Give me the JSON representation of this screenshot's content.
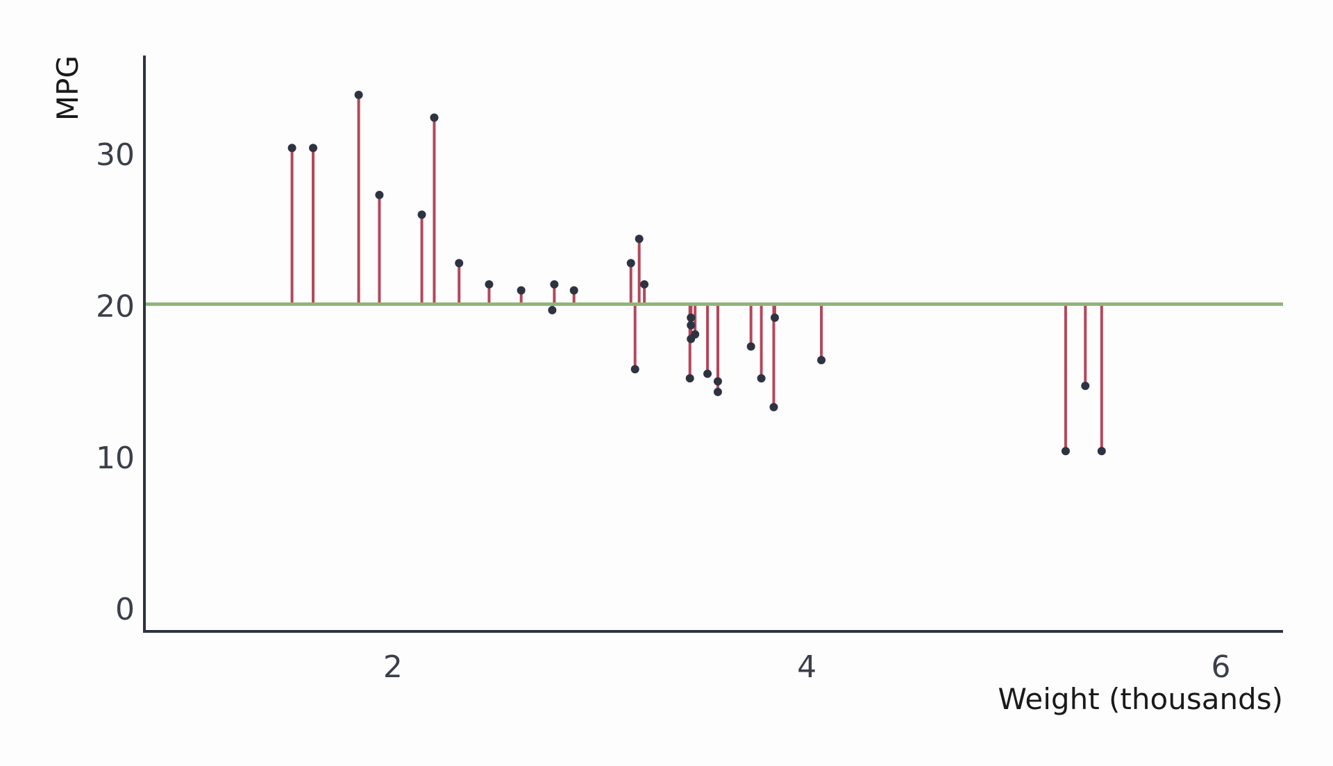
{
  "chart_data": {
    "type": "scatter",
    "xlabel": "Weight (thousands)",
    "ylabel": "MPG",
    "xlim": [
      0.8,
      6.3
    ],
    "ylim": [
      -1.5,
      36.5
    ],
    "x_ticks": [
      2,
      4,
      6
    ],
    "y_ticks": [
      0,
      10,
      20,
      30
    ],
    "baseline": 20.09,
    "grid": false,
    "colors": {
      "baseline": "#8fb47a",
      "residual": "#b5475a",
      "point": "#2e3342",
      "axis": "#2e3342"
    },
    "points": [
      {
        "x": 1.513,
        "y": 30.4
      },
      {
        "x": 1.615,
        "y": 30.4
      },
      {
        "x": 1.835,
        "y": 33.9
      },
      {
        "x": 1.935,
        "y": 27.3
      },
      {
        "x": 2.14,
        "y": 26.0
      },
      {
        "x": 2.2,
        "y": 32.4
      },
      {
        "x": 2.32,
        "y": 22.8
      },
      {
        "x": 2.465,
        "y": 21.4
      },
      {
        "x": 2.62,
        "y": 21.0
      },
      {
        "x": 2.77,
        "y": 19.7
      },
      {
        "x": 2.78,
        "y": 21.4
      },
      {
        "x": 2.875,
        "y": 21.0
      },
      {
        "x": 3.15,
        "y": 22.8
      },
      {
        "x": 3.17,
        "y": 15.8
      },
      {
        "x": 3.19,
        "y": 24.4
      },
      {
        "x": 3.215,
        "y": 21.4
      },
      {
        "x": 3.435,
        "y": 15.2
      },
      {
        "x": 3.44,
        "y": 18.7
      },
      {
        "x": 3.44,
        "y": 19.2
      },
      {
        "x": 3.44,
        "y": 17.8
      },
      {
        "x": 3.46,
        "y": 18.1
      },
      {
        "x": 3.52,
        "y": 15.5
      },
      {
        "x": 3.57,
        "y": 14.3
      },
      {
        "x": 3.57,
        "y": 15.0
      },
      {
        "x": 3.73,
        "y": 17.3
      },
      {
        "x": 3.78,
        "y": 15.2
      },
      {
        "x": 3.84,
        "y": 13.3
      },
      {
        "x": 3.845,
        "y": 19.2
      },
      {
        "x": 4.07,
        "y": 16.4
      },
      {
        "x": 5.25,
        "y": 10.4
      },
      {
        "x": 5.345,
        "y": 14.7
      },
      {
        "x": 5.424,
        "y": 10.4
      }
    ]
  }
}
